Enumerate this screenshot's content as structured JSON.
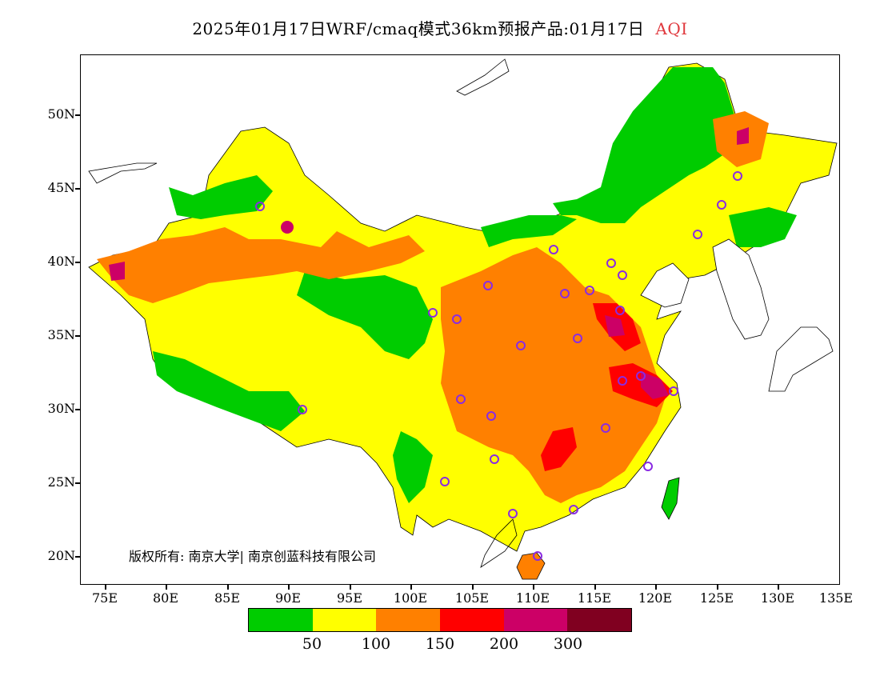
{
  "title": {
    "main": "2025年01月17日WRF/cmaq模式36km预报产品:01月17日",
    "variable": "AQI"
  },
  "axes": {
    "lat_labels": [
      "50N",
      "45N",
      "40N",
      "35N",
      "30N",
      "25N",
      "20N"
    ],
    "lon_labels": [
      "75E",
      "80E",
      "85E",
      "90E",
      "95E",
      "100E",
      "105E",
      "110E",
      "115E",
      "120E",
      "125E",
      "130E",
      "135E"
    ]
  },
  "map": {
    "lon_range": [
      73,
      135
    ],
    "lat_range": [
      18,
      54
    ],
    "copyright": "版权所有: 南京大学| 南京创蓝科技有限公司"
  },
  "legend": {
    "colors": [
      "#00cc00",
      "#ffff00",
      "#ff8000",
      "#ff0000",
      "#cc0066",
      "#800020"
    ],
    "labels": [
      "50",
      "100",
      "150",
      "200",
      "300"
    ]
  }
}
